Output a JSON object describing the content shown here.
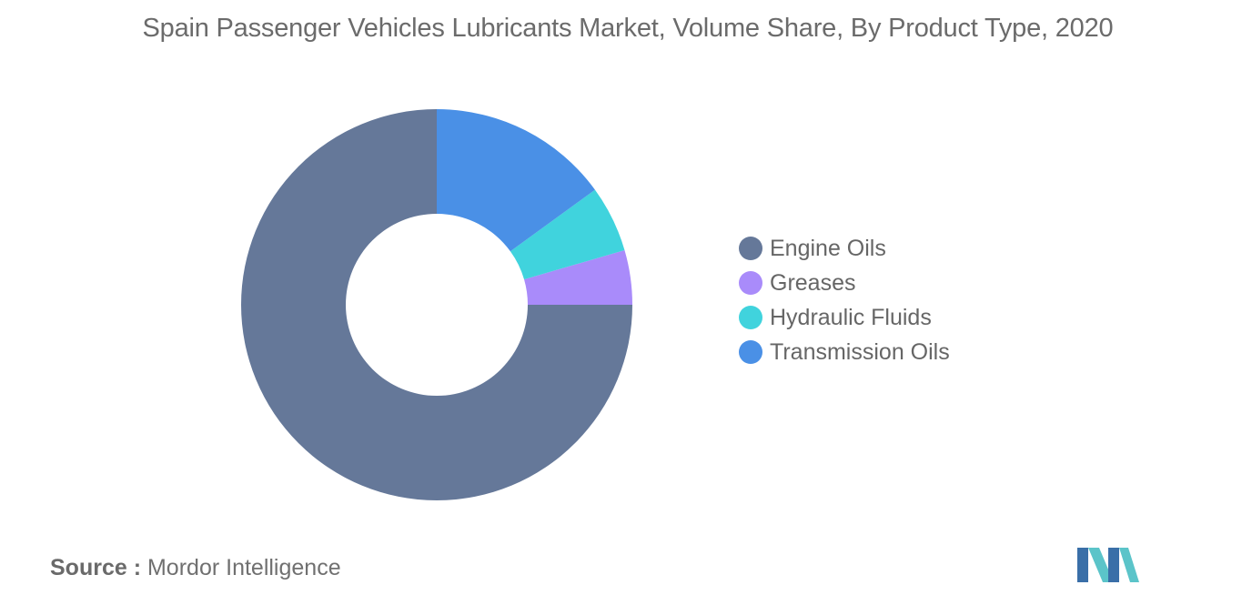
{
  "chart_data": {
    "type": "pie",
    "subtype": "donut",
    "title": "Spain Passenger Vehicles Lubricants Market, Volume Share, By Product Type, 2020",
    "categories": [
      "Engine Oils",
      "Greases",
      "Hydraulic Fluids",
      "Transmission Oils"
    ],
    "values": [
      75.0,
      4.5,
      5.5,
      15.0
    ],
    "unit": "%",
    "colors": [
      "#657899",
      "#a98bfa",
      "#40d3dd",
      "#4a90e6"
    ],
    "legend_position": "right",
    "start_angle_deg": -90,
    "clockwise": false
  },
  "source": {
    "key": "Source :",
    "value": "Mordor Intelligence"
  },
  "logo": {
    "icon": "mordor-intelligence-logo-icon",
    "colors": [
      "#3a6fa8",
      "#5bc4c9"
    ]
  }
}
